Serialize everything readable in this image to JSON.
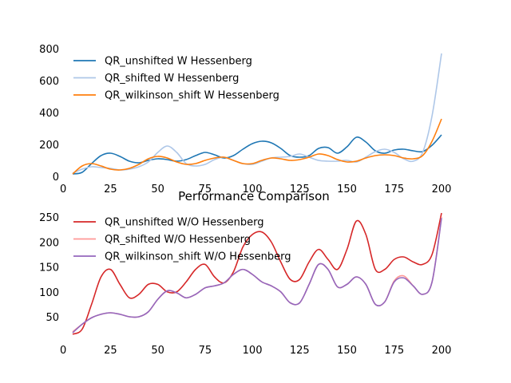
{
  "chart_data": [
    {
      "type": "line",
      "title": "",
      "xlabel": "",
      "ylabel": "",
      "xlim": [
        0,
        200
      ],
      "ylim": [
        0,
        800
      ],
      "xticks": [
        "0",
        "25",
        "50",
        "75",
        "100",
        "125",
        "150",
        "175",
        "200"
      ],
      "yticks": [
        "0",
        "200",
        "400",
        "600",
        "800"
      ],
      "grid": false,
      "legend_position": "top-left",
      "series": [
        {
          "name": "QR_unshifted W Hessenberg",
          "color": "#1f77b4",
          "x": [
            5,
            10,
            15,
            20,
            25,
            30,
            35,
            40,
            45,
            50,
            55,
            60,
            65,
            70,
            75,
            80,
            85,
            90,
            95,
            100,
            105,
            110,
            115,
            120,
            125,
            130,
            135,
            140,
            145,
            150,
            155,
            160,
            165,
            170,
            175,
            180,
            185,
            190,
            195,
            200
          ],
          "y": [
            15,
            25,
            80,
            130,
            145,
            125,
            95,
            85,
            100,
            110,
            105,
            95,
            105,
            130,
            150,
            135,
            115,
            130,
            170,
            205,
            220,
            210,
            175,
            130,
            120,
            130,
            175,
            180,
            145,
            185,
            245,
            215,
            160,
            145,
            165,
            170,
            160,
            155,
            195,
            260
          ]
        },
        {
          "name": "QR_shifted W Hessenberg",
          "color": "#aec7e8",
          "x": [
            5,
            10,
            15,
            20,
            25,
            30,
            35,
            40,
            45,
            50,
            55,
            60,
            65,
            70,
            75,
            80,
            85,
            90,
            95,
            100,
            105,
            110,
            115,
            120,
            125,
            130,
            135,
            140,
            145,
            150,
            155,
            160,
            165,
            170,
            175,
            180,
            185,
            190,
            195,
            200
          ],
          "y": [
            20,
            45,
            60,
            55,
            50,
            40,
            45,
            60,
            90,
            150,
            190,
            150,
            80,
            65,
            75,
            105,
            120,
            100,
            80,
            75,
            95,
            115,
            120,
            125,
            140,
            120,
            100,
            95,
            95,
            100,
            90,
            120,
            155,
            170,
            150,
            110,
            95,
            150,
            380,
            770
          ]
        },
        {
          "name": "QR_wilkinson_shift W Hessenberg",
          "color": "#ff7f0e",
          "x": [
            5,
            10,
            15,
            20,
            25,
            30,
            35,
            40,
            45,
            50,
            55,
            60,
            65,
            70,
            75,
            80,
            85,
            90,
            95,
            100,
            105,
            110,
            115,
            120,
            125,
            130,
            135,
            140,
            145,
            150,
            155,
            160,
            165,
            170,
            175,
            180,
            185,
            190,
            195,
            200
          ],
          "y": [
            15,
            65,
            80,
            65,
            45,
            40,
            50,
            75,
            110,
            125,
            115,
            90,
            75,
            80,
            100,
            115,
            120,
            100,
            80,
            80,
            100,
            115,
            110,
            100,
            105,
            120,
            140,
            130,
            105,
            90,
            95,
            115,
            130,
            135,
            130,
            115,
            110,
            130,
            220,
            360
          ]
        }
      ]
    },
    {
      "type": "line",
      "title": "Performance Comparison",
      "xlabel": "",
      "ylabel": "",
      "xlim": [
        0,
        200
      ],
      "ylim": [
        10,
        260
      ],
      "xticks": [
        "0",
        "25",
        "50",
        "75",
        "100",
        "125",
        "150",
        "175",
        "200"
      ],
      "yticks": [
        "50",
        "100",
        "150",
        "200",
        "250"
      ],
      "grid": false,
      "legend_position": "top-left",
      "series": [
        {
          "name": "QR_unshifted W/O Hessenberg",
          "color": "#d62728",
          "x": [
            5,
            10,
            15,
            20,
            25,
            30,
            35,
            40,
            45,
            50,
            55,
            60,
            65,
            70,
            75,
            80,
            85,
            90,
            95,
            100,
            105,
            110,
            115,
            120,
            125,
            130,
            135,
            140,
            145,
            150,
            155,
            160,
            165,
            170,
            175,
            180,
            185,
            190,
            195,
            200
          ],
          "y": [
            15,
            25,
            75,
            130,
            145,
            115,
            88,
            95,
            115,
            115,
            100,
            100,
            120,
            145,
            155,
            130,
            118,
            140,
            190,
            215,
            220,
            200,
            160,
            125,
            125,
            160,
            185,
            165,
            145,
            185,
            242,
            215,
            145,
            145,
            165,
            170,
            160,
            155,
            175,
            258
          ]
        },
        {
          "name": "QR_shifted W/O Hessenberg",
          "color": "#ff9896",
          "x": [
            5,
            10,
            15,
            20,
            25,
            30,
            35,
            40,
            45,
            50,
            55,
            60,
            65,
            70,
            75,
            80,
            85,
            90,
            95,
            100,
            105,
            110,
            115,
            120,
            125,
            130,
            135,
            140,
            145,
            150,
            155,
            160,
            165,
            170,
            175,
            180,
            185,
            190,
            195,
            200
          ],
          "y": [
            20,
            35,
            48,
            55,
            58,
            55,
            50,
            50,
            60,
            85,
            102,
            98,
            88,
            95,
            108,
            112,
            118,
            135,
            145,
            135,
            120,
            112,
            100,
            78,
            78,
            115,
            155,
            145,
            110,
            115,
            130,
            115,
            75,
            80,
            122,
            132,
            112,
            95,
            120,
            250
          ]
        },
        {
          "name": "QR_wilkinson_shift W/O Hessenberg",
          "color": "#9467bd",
          "x": [
            5,
            10,
            15,
            20,
            25,
            30,
            35,
            40,
            45,
            50,
            55,
            60,
            65,
            70,
            75,
            80,
            85,
            90,
            95,
            100,
            105,
            110,
            115,
            120,
            125,
            130,
            135,
            140,
            145,
            150,
            155,
            160,
            165,
            170,
            175,
            180,
            185,
            190,
            195,
            200
          ],
          "y": [
            18,
            35,
            48,
            55,
            58,
            55,
            50,
            50,
            60,
            85,
            102,
            98,
            88,
            95,
            108,
            112,
            118,
            135,
            145,
            135,
            120,
            112,
            100,
            78,
            78,
            115,
            155,
            145,
            110,
            115,
            130,
            115,
            75,
            80,
            120,
            128,
            112,
            95,
            120,
            248
          ]
        }
      ]
    }
  ]
}
